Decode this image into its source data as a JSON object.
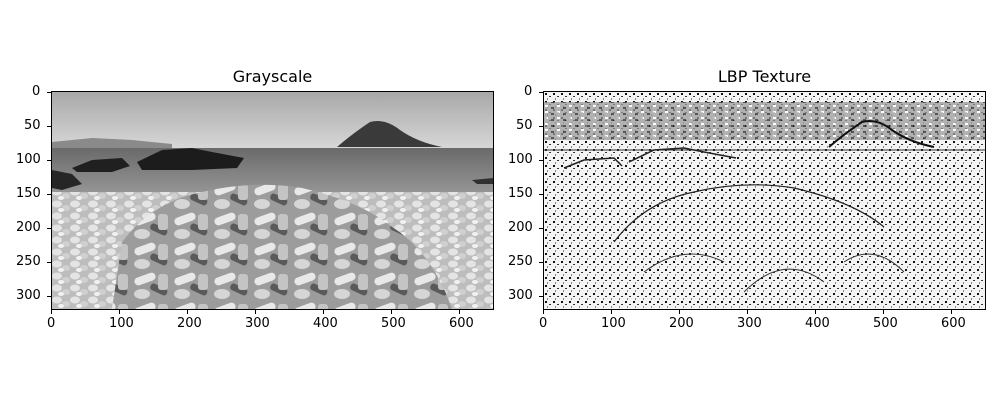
{
  "figure": {
    "panels": [
      {
        "title": "Grayscale",
        "x_ticks": [
          "0",
          "100",
          "200",
          "300",
          "400",
          "500",
          "600"
        ],
        "y_ticks": [
          "0",
          "50",
          "100",
          "150",
          "200",
          "250",
          "300"
        ],
        "image_description": "grayscale photo of plastic bottles piled on a pebble beach with sea, rocks and an island"
      },
      {
        "title": "LBP Texture",
        "x_ticks": [
          "0",
          "100",
          "200",
          "300",
          "400",
          "500",
          "600"
        ],
        "y_ticks": [
          "0",
          "50",
          "100",
          "150",
          "200",
          "250",
          "300"
        ],
        "image_description": "local binary pattern texture map of the same scene"
      }
    ]
  }
}
